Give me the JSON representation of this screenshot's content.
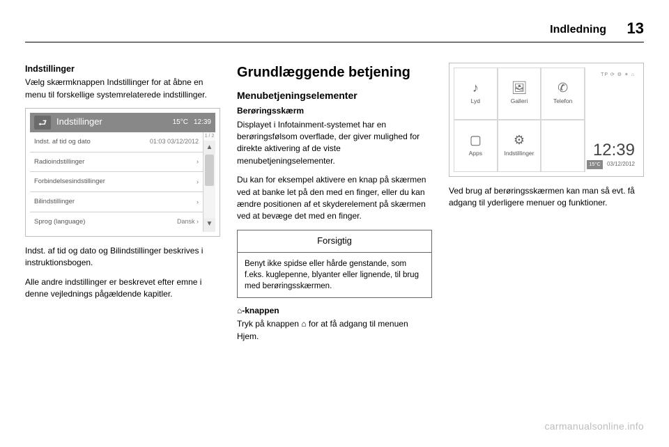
{
  "header": {
    "section": "Indledning",
    "page_number": "13"
  },
  "col1": {
    "heading": "Indstillinger",
    "para1": "Vælg skærmknappen Indstillinger for at åbne en menu til forskellige systemrelaterede indstillinger.",
    "para2": "Indst. af tid og dato og Bilindstillinger beskrives i instruktionsbogen.",
    "para3": "Alle andre indstillinger er beskrevet efter emne i denne vejlednings pågældende kapitler.",
    "screenshot": {
      "title": "Indstillinger",
      "temp": "15°C",
      "time": "12:39",
      "page_indicator": "1 / 2",
      "rows": [
        {
          "label": "Indst. af tid og dato",
          "value": "01:03  03/12/2012"
        },
        {
          "label": "Radioindstillinger",
          "value": "›"
        },
        {
          "label": "Forbindelsesindstillinger",
          "value": "›"
        },
        {
          "label": "Bilindstillinger",
          "value": "›"
        },
        {
          "label": "Sprog (language)",
          "value": "Dansk ›"
        }
      ]
    }
  },
  "col2": {
    "h2": "Grundlæggende betjening",
    "h3": "Menubetjeningselementer",
    "h4": "Berøringsskærm",
    "para1": "Displayet i Infotainment-systemet har en berøringsfølsom overflade, der giver mulighed for direkte aktivering af de viste menubetjeningselementer.",
    "para2": "Du kan for eksempel aktivere en knap på skærmen ved at banke let på den med en finger, eller du kan ændre positionen af et skyderelement på skærmen ved at bevæge det med en finger.",
    "caution_title": "Forsigtig",
    "caution_body": "Benyt ikke spidse eller hårde genstande, som f.eks. kuglepenne, blyanter eller lignende, til brug med berøringsskærmen.",
    "h4b": "⌂-knappen",
    "para3": "Tryk på knappen ⌂ for at få adgang til menuen Hjem."
  },
  "col3": {
    "screenshot": {
      "status": "TP  ⟳  ⚙  ✶  ⌂",
      "clock": "12:39",
      "temp": "15°C",
      "date": "03/12/2012",
      "cells": [
        {
          "icon": "♪",
          "label": "Lyd"
        },
        {
          "icon": "🖼",
          "label": "Galleri"
        },
        {
          "icon": "✆",
          "label": "Telefon"
        },
        {
          "icon": "▢",
          "label": "Apps"
        },
        {
          "icon": "⚙",
          "label": "Indstillinger"
        },
        {
          "icon": "",
          "label": ""
        }
      ]
    },
    "para1": "Ved brug af berøringsskærmen kan man så evt. få adgang til yderligere menuer og funktioner."
  },
  "watermark": "carmanualsonline.info"
}
